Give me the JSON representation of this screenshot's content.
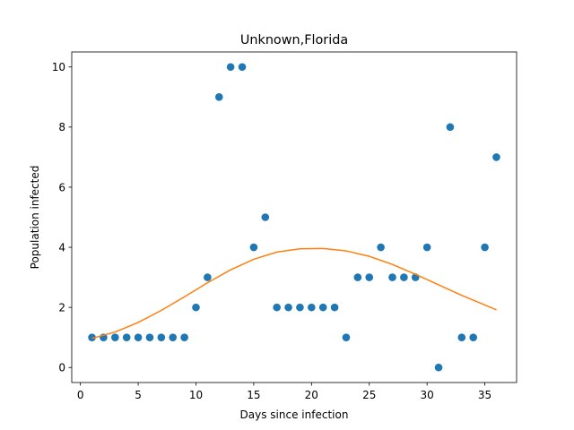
{
  "chart_data": {
    "type": "scatter",
    "title": "Unknown,Florida",
    "xlabel": "Days since infection",
    "ylabel": "Population infected",
    "xlim": [
      -0.75,
      37.75
    ],
    "ylim": [
      -0.5,
      10.5
    ],
    "xticks": [
      0,
      5,
      10,
      15,
      20,
      25,
      30,
      35
    ],
    "yticks": [
      0,
      2,
      4,
      6,
      8,
      10
    ],
    "grid": false,
    "series": [
      {
        "kind": "scatter",
        "color": "#1f77b4",
        "x": [
          1,
          2,
          3,
          4,
          5,
          6,
          7,
          8,
          9,
          10,
          11,
          12,
          13,
          14,
          15,
          16,
          17,
          18,
          19,
          20,
          21,
          22,
          23,
          24,
          25,
          26,
          27,
          28,
          29,
          30,
          31,
          32,
          33,
          34,
          35,
          36
        ],
        "y": [
          1,
          1,
          1,
          1,
          1,
          1,
          1,
          1,
          1,
          2,
          3,
          9,
          10,
          10,
          4,
          5,
          2,
          2,
          2,
          2,
          2,
          2,
          1,
          3,
          3,
          4,
          3,
          3,
          3,
          4,
          0,
          8,
          1,
          1,
          4,
          7
        ]
      },
      {
        "kind": "line",
        "color": "#ff7f0e",
        "x": [
          1,
          3,
          5,
          7,
          9,
          11,
          13,
          15,
          17,
          19,
          21,
          23,
          25,
          27,
          29,
          31,
          33,
          35,
          36
        ],
        "y": [
          0.97,
          1.18,
          1.5,
          1.9,
          2.35,
          2.82,
          3.25,
          3.6,
          3.84,
          3.95,
          3.96,
          3.88,
          3.7,
          3.43,
          3.1,
          2.75,
          2.4,
          2.08,
          1.92
        ]
      }
    ]
  }
}
